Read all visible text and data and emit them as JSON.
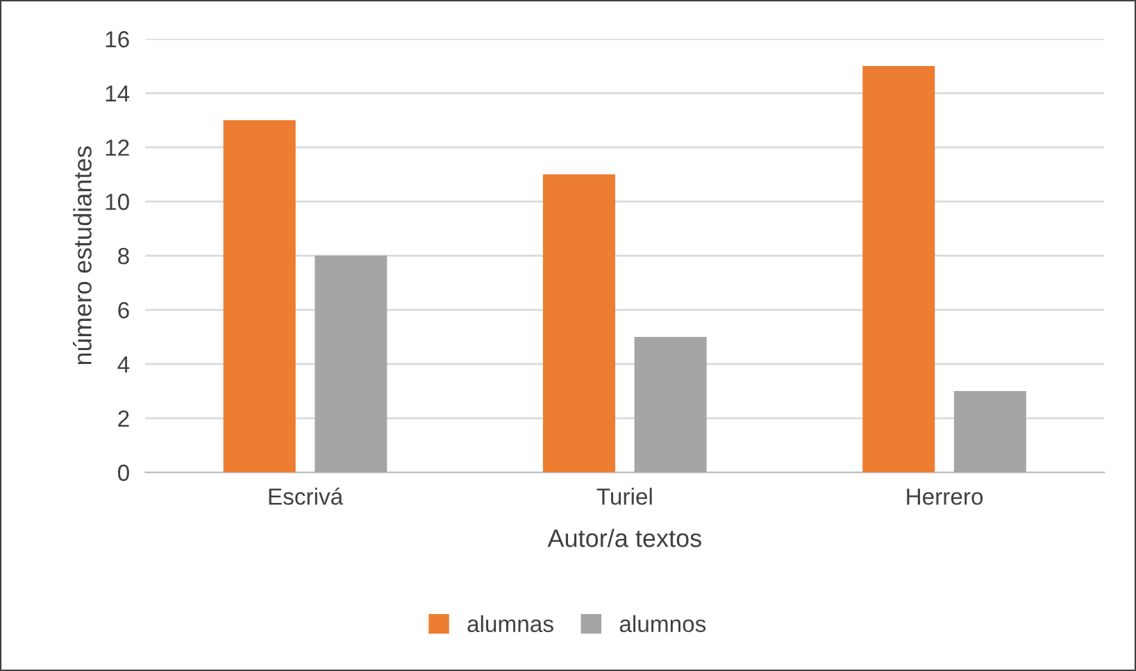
{
  "chart_data": {
    "type": "bar",
    "xlabel": "Autor/a textos",
    "ylabel": "número estudiantes",
    "categories": [
      "Escrivá",
      "Turiel",
      "Herrero"
    ],
    "series": [
      {
        "name": "alumnas",
        "color": "#ed7d31",
        "values": [
          13,
          11,
          15
        ]
      },
      {
        "name": "alumnos",
        "color": "#a5a5a5",
        "values": [
          8,
          5,
          3
        ]
      }
    ],
    "ylim": [
      0,
      16
    ],
    "yticks": [
      0,
      2,
      4,
      6,
      8,
      10,
      12,
      14,
      16
    ],
    "grid": "y",
    "legend": "bottom"
  }
}
